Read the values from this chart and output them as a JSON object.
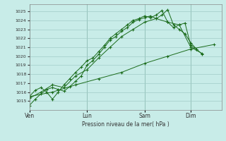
{
  "title": "",
  "xlabel": "Pression niveau de la mer( hPa )",
  "ylabel": "",
  "bg_color": "#c8ece8",
  "grid_color": "#a0ccc8",
  "line_color": "#1a6b1a",
  "ylim": [
    1014.0,
    1025.8
  ],
  "yticks": [
    1015,
    1016,
    1017,
    1018,
    1019,
    1020,
    1021,
    1022,
    1023,
    1024,
    1025
  ],
  "xtick_labels": [
    "Ven",
    "Lun",
    "Sam",
    "Dim"
  ],
  "xtick_positions": [
    0,
    30,
    60,
    84
  ],
  "xlim": [
    0,
    100
  ],
  "lines": [
    {
      "x": [
        0,
        3,
        6,
        9,
        12,
        15,
        18,
        21,
        24,
        27,
        30,
        33,
        36,
        39,
        42,
        45,
        48,
        51,
        54,
        57,
        60,
        63,
        66,
        69,
        72,
        75,
        78,
        81,
        84,
        87,
        90
      ],
      "y": [
        1014.5,
        1015.2,
        1015.8,
        1016.3,
        1016.5,
        1016.3,
        1016.1,
        1016.6,
        1017.2,
        1017.8,
        1019.0,
        1019.5,
        1020.2,
        1021.0,
        1021.8,
        1022.2,
        1022.8,
        1023.2,
        1023.8,
        1024.1,
        1024.3,
        1024.5,
        1024.2,
        1024.6,
        1025.2,
        1023.5,
        1023.0,
        1022.5,
        1021.5,
        1020.8,
        1020.2
      ]
    },
    {
      "x": [
        0,
        3,
        6,
        9,
        12,
        15,
        18,
        21,
        24,
        27,
        30,
        33,
        36,
        39,
        42,
        45,
        48,
        51,
        54,
        57,
        60,
        63,
        66,
        69,
        72,
        75,
        78,
        81,
        84,
        87
      ],
      "y": [
        1015.5,
        1016.2,
        1016.5,
        1016.0,
        1015.2,
        1016.0,
        1016.8,
        1017.5,
        1018.2,
        1018.8,
        1019.5,
        1019.8,
        1020.5,
        1021.2,
        1022.0,
        1022.5,
        1023.0,
        1023.5,
        1024.0,
        1024.2,
        1024.5,
        1024.3,
        1024.6,
        1025.1,
        1023.8,
        1023.2,
        1023.5,
        1023.7,
        1021.2,
        1020.8
      ]
    },
    {
      "x": [
        0,
        6,
        12,
        18,
        24,
        30,
        36,
        42,
        48,
        54,
        60,
        66,
        72,
        78,
        84,
        90
      ],
      "y": [
        1015.3,
        1016.0,
        1016.8,
        1016.5,
        1017.8,
        1018.5,
        1019.8,
        1021.0,
        1022.2,
        1023.0,
        1023.8,
        1024.2,
        1023.8,
        1023.5,
        1021.0,
        1020.3
      ]
    },
    {
      "x": [
        0,
        12,
        24,
        36,
        48,
        60,
        72,
        84,
        96
      ],
      "y": [
        1015.5,
        1016.0,
        1016.8,
        1017.5,
        1018.2,
        1019.2,
        1020.0,
        1020.8,
        1021.3
      ]
    }
  ]
}
